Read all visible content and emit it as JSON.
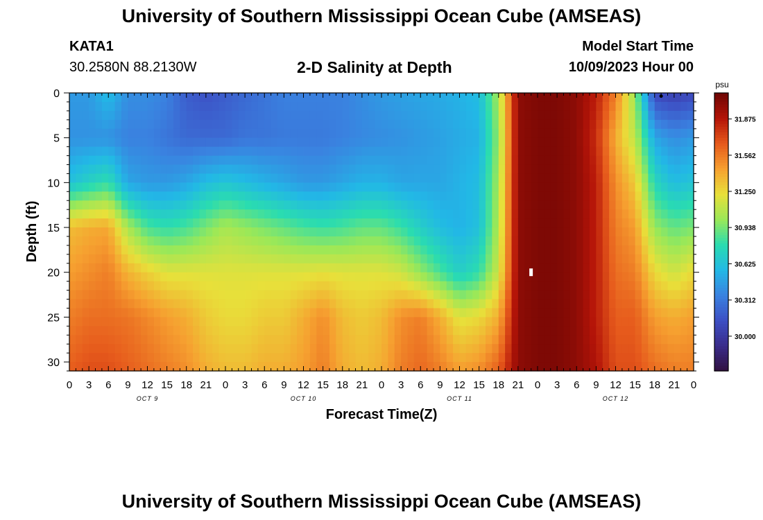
{
  "header": {
    "title": "University of Southern Mississippi Ocean Cube (AMSEAS)",
    "station": "KATA1",
    "coordinates": "30.2580N  88.2130W",
    "subtitle": "2-D Salinity at Depth",
    "start_label": "Model Start Time",
    "start_value": "10/09/2023 Hour 00"
  },
  "footer": {
    "title": "University of Southern Mississippi Ocean Cube (AMSEAS)"
  },
  "colors": {
    "scale": [
      "#301040",
      "#3a2c8a",
      "#3d4fc4",
      "#3a82e0",
      "#22b8e6",
      "#2adcb0",
      "#9ae858",
      "#e8e03a",
      "#f6a030",
      "#e65a1c",
      "#b41408",
      "#6e0604"
    ]
  },
  "chart_data": {
    "type": "heatmap",
    "title": "2-D Salinity at Depth",
    "xlabel": "Forecast Time(Z)",
    "ylabel": "Depth (ft)",
    "x_ticks": [
      "0",
      "3",
      "6",
      "9",
      "12",
      "15",
      "18",
      "21",
      "0",
      "3",
      "6",
      "9",
      "12",
      "15",
      "18",
      "21",
      "0",
      "3",
      "6",
      "9",
      "12",
      "15",
      "18",
      "21",
      "0",
      "3",
      "6",
      "9",
      "12",
      "15",
      "18",
      "21",
      "0"
    ],
    "day_labels": [
      "OCT 9",
      "OCT 10",
      "OCT 11",
      "OCT 12"
    ],
    "y_ticks": [
      "0",
      "5",
      "10",
      "15",
      "20",
      "25",
      "30"
    ],
    "xlim": [
      0,
      96
    ],
    "ylim": [
      0,
      31
    ],
    "x_unit": "forecast hours",
    "y_unit": "ft",
    "colorbar": {
      "unit": "psu",
      "min": 29.7,
      "max": 32.1,
      "tick_values": [
        30.0,
        30.312,
        30.625,
        30.938,
        31.25,
        31.562,
        31.875
      ],
      "tick_labels": [
        "30.000",
        "30.312",
        "30.625",
        "30.938",
        "31.250",
        "31.562",
        "31.875"
      ]
    },
    "field": {
      "description": "salinity (psu) sampled at time hours x depth ft",
      "times_h": [
        0,
        3,
        6,
        9,
        12,
        15,
        18,
        21,
        24,
        27,
        30,
        33,
        36,
        39,
        42,
        45,
        48,
        51,
        54,
        57,
        60,
        63,
        66,
        69,
        72,
        75,
        78,
        81,
        84,
        87,
        90,
        93,
        96
      ],
      "depths_ft": [
        0,
        5,
        10,
        15,
        20,
        25,
        31
      ],
      "salinity_psu": [
        [
          30.45,
          30.42,
          30.62,
          31.35,
          31.45,
          31.55,
          31.65
        ],
        [
          30.45,
          30.42,
          30.72,
          31.4,
          31.5,
          31.6,
          31.7
        ],
        [
          30.6,
          30.42,
          30.8,
          31.42,
          31.55,
          31.6,
          31.7
        ],
        [
          30.4,
          30.35,
          30.5,
          31.05,
          31.38,
          31.58,
          31.65
        ],
        [
          30.4,
          30.35,
          30.45,
          30.85,
          31.28,
          31.52,
          31.6
        ],
        [
          30.35,
          30.3,
          30.45,
          30.8,
          31.2,
          31.45,
          31.55
        ],
        [
          30.2,
          30.25,
          30.5,
          30.85,
          31.2,
          31.4,
          31.5
        ],
        [
          30.15,
          30.25,
          30.6,
          30.95,
          31.2,
          31.3,
          31.4
        ],
        [
          30.2,
          30.25,
          30.65,
          31.05,
          31.2,
          31.25,
          31.35
        ],
        [
          30.25,
          30.3,
          30.6,
          31.0,
          31.2,
          31.25,
          31.35
        ],
        [
          30.3,
          30.3,
          30.55,
          30.95,
          31.2,
          31.3,
          31.4
        ],
        [
          30.35,
          30.32,
          30.5,
          30.9,
          31.2,
          31.3,
          31.4
        ],
        [
          30.35,
          30.32,
          30.45,
          30.85,
          31.2,
          31.4,
          31.45
        ],
        [
          30.35,
          30.32,
          30.45,
          30.82,
          31.22,
          31.5,
          31.55
        ],
        [
          30.35,
          30.35,
          30.5,
          30.85,
          31.2,
          31.35,
          31.4
        ],
        [
          30.4,
          30.38,
          30.55,
          30.9,
          31.2,
          31.3,
          31.35
        ],
        [
          30.45,
          30.4,
          30.55,
          30.9,
          31.2,
          31.35,
          31.4
        ],
        [
          30.48,
          30.42,
          30.5,
          30.82,
          31.15,
          31.5,
          31.55
        ],
        [
          30.5,
          30.45,
          30.5,
          30.7,
          31.0,
          31.55,
          31.62
        ],
        [
          30.52,
          30.48,
          30.5,
          30.6,
          30.85,
          31.4,
          31.55
        ],
        [
          30.55,
          30.52,
          30.55,
          30.55,
          30.7,
          31.2,
          31.45
        ],
        [
          30.6,
          30.55,
          30.6,
          30.62,
          30.8,
          31.25,
          31.5
        ],
        [
          31.05,
          31.0,
          31.05,
          31.08,
          31.15,
          31.4,
          31.65
        ],
        [
          32.0,
          32.0,
          32.0,
          32.0,
          32.0,
          32.0,
          32.0
        ],
        [
          32.05,
          32.05,
          32.05,
          32.05,
          32.05,
          32.05,
          32.05
        ],
        [
          32.05,
          32.05,
          32.05,
          32.05,
          32.05,
          32.05,
          32.05
        ],
        [
          32.0,
          32.0,
          32.0,
          32.0,
          32.0,
          32.0,
          32.0
        ],
        [
          31.85,
          31.8,
          31.85,
          31.85,
          31.85,
          31.85,
          31.9
        ],
        [
          31.55,
          31.4,
          31.5,
          31.55,
          31.6,
          31.65,
          31.7
        ],
        [
          31.0,
          31.1,
          31.3,
          31.45,
          31.55,
          31.65,
          31.7
        ],
        [
          30.1,
          30.5,
          30.75,
          31.0,
          31.25,
          31.45,
          31.6
        ],
        [
          30.05,
          30.4,
          30.6,
          30.9,
          31.15,
          31.4,
          31.55
        ],
        [
          30.1,
          30.45,
          30.65,
          30.95,
          31.25,
          31.45,
          31.55
        ]
      ]
    },
    "markers": [
      {
        "label": "marker",
        "x_h": 71,
        "y_ft": 20
      },
      {
        "label": "dot",
        "x_h": 91,
        "y_ft": 0.2
      }
    ]
  }
}
